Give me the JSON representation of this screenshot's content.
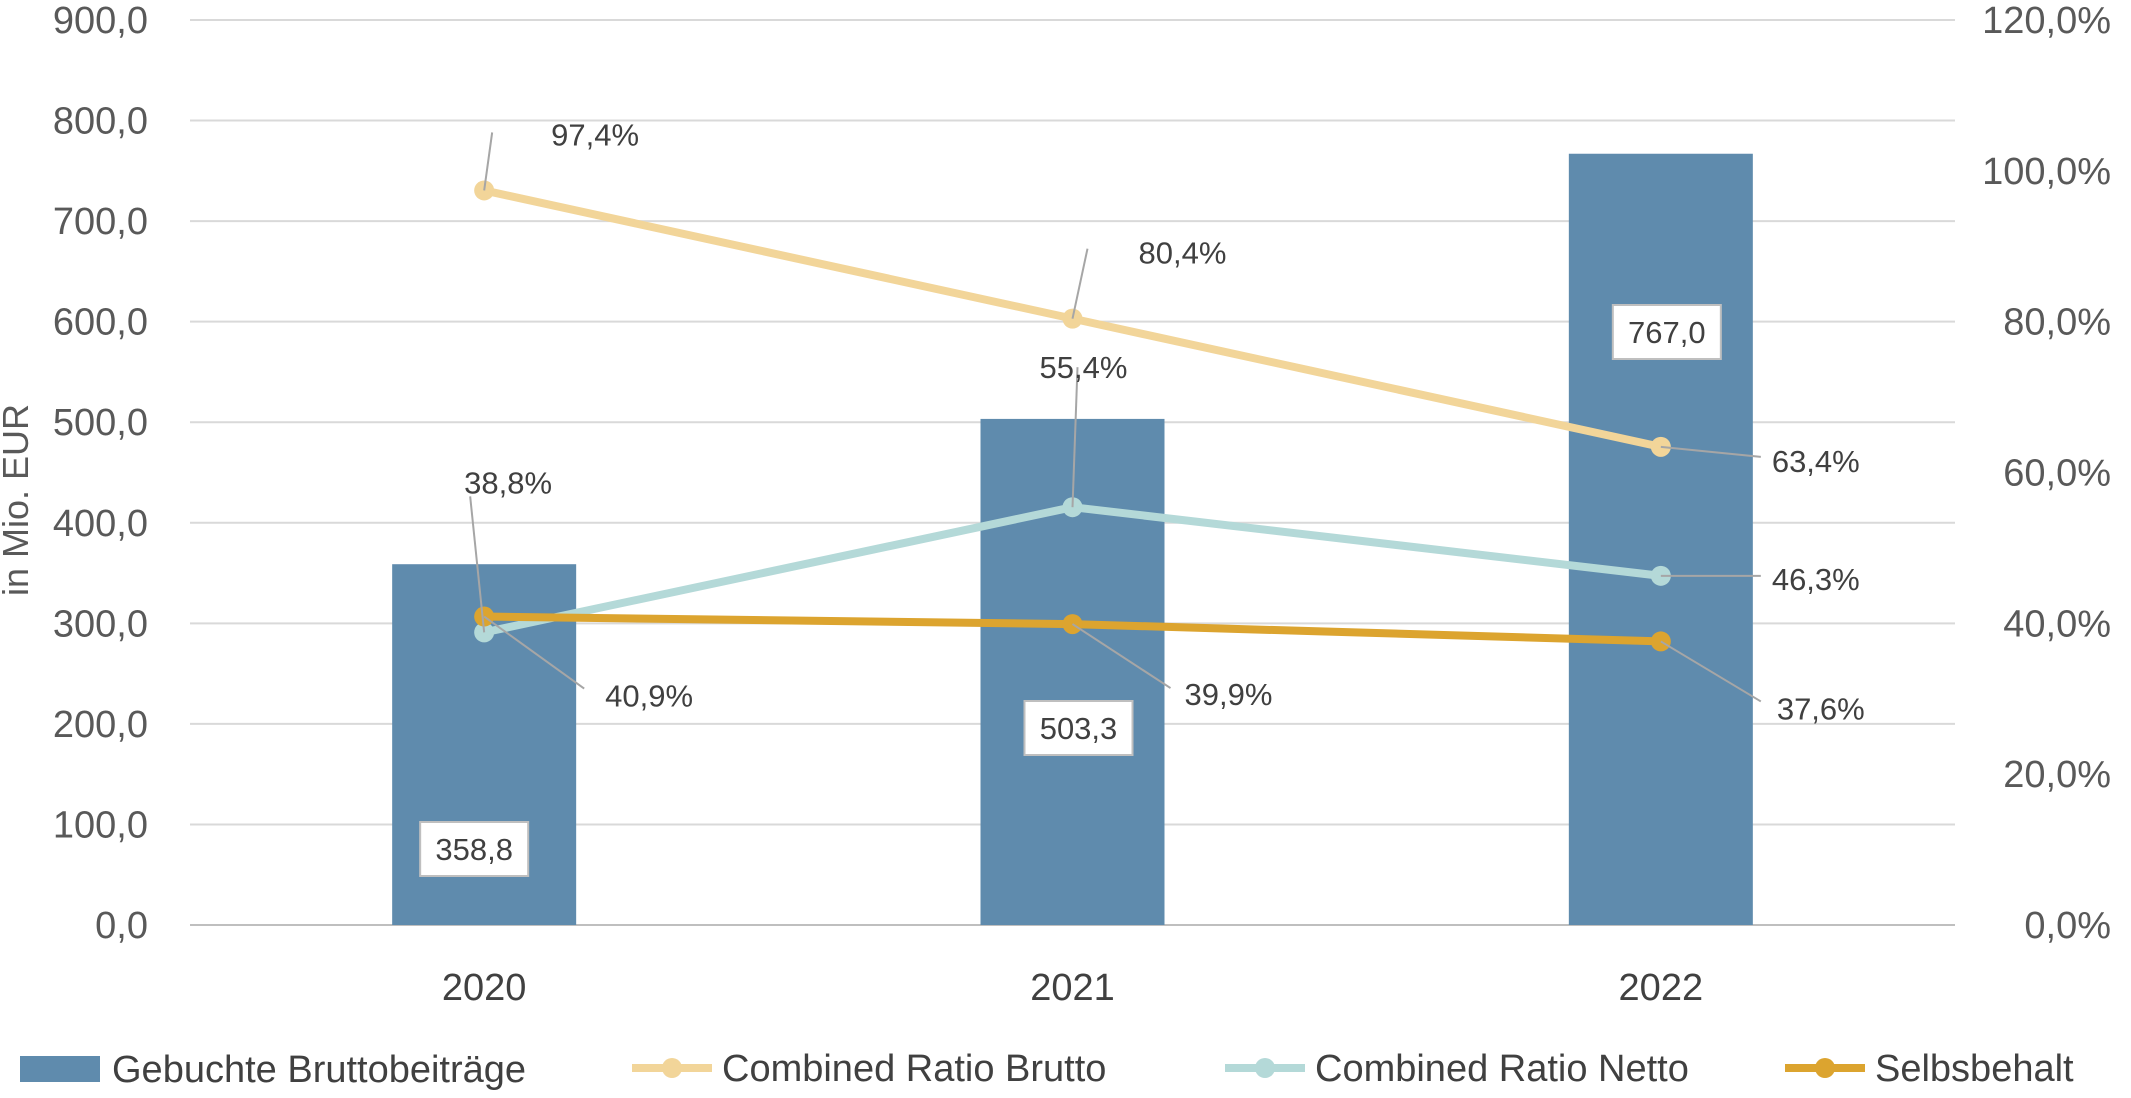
{
  "chart_data": {
    "type": "bar",
    "categories": [
      "2020",
      "2021",
      "2022"
    ],
    "ylabel": "in Mio. EUR",
    "ylim": [
      0,
      900
    ],
    "y2lim": [
      0,
      120
    ],
    "y_ticks": [
      "0,0",
      "100,0",
      "200,0",
      "300,0",
      "400,0",
      "500,0",
      "600,0",
      "700,0",
      "800,0",
      "900,0"
    ],
    "y2_ticks": [
      "0,0%",
      "20,0%",
      "40,0%",
      "60,0%",
      "80,0%",
      "100,0%",
      "120,0%"
    ],
    "grid": true,
    "legend_position": "bottom",
    "series": [
      {
        "name": "Gebuchte Bruttobeiträge",
        "kind": "bar",
        "axis": "primary",
        "color": "#5f8bad",
        "values": [
          358.8,
          503.3,
          767.0
        ],
        "labels": [
          "358,8",
          "503,3",
          "767,0"
        ]
      },
      {
        "name": "Combined Ratio Brutto",
        "kind": "line",
        "axis": "secondary",
        "color": "#f2d599",
        "values": [
          97.4,
          80.4,
          63.4
        ],
        "labels": [
          "97,4%",
          "80,4%",
          "63,4%"
        ]
      },
      {
        "name": "Combined Ratio Netto",
        "kind": "line",
        "axis": "secondary",
        "color": "#b4d9d8",
        "values": [
          38.8,
          55.4,
          46.3
        ],
        "labels": [
          "38,8%",
          "55,4%",
          "46,3%"
        ]
      },
      {
        "name": "Selbsbehalt",
        "kind": "line",
        "axis": "secondary",
        "color": "#dca42f",
        "values": [
          40.9,
          39.9,
          37.6
        ],
        "labels": [
          "40,9%",
          "39,9%",
          "37,6%"
        ]
      }
    ]
  }
}
